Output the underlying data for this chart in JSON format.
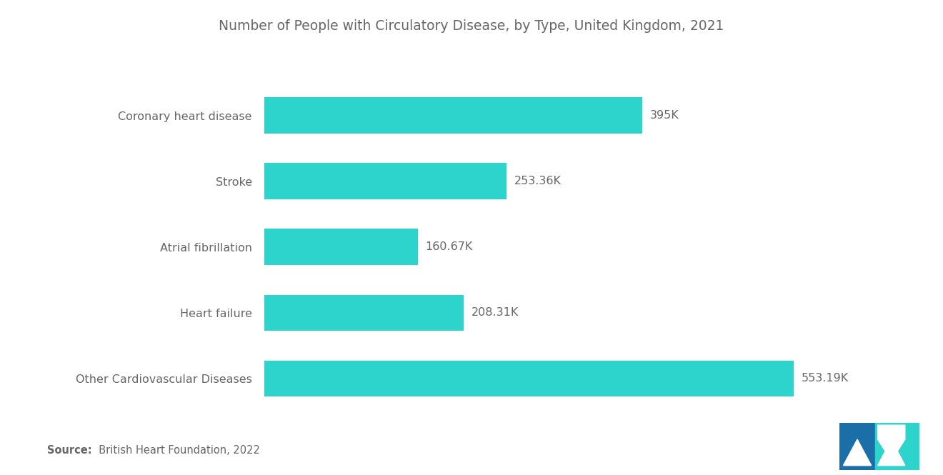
{
  "title": "Number of People with Circulatory Disease, by Type, United Kingdom, 2021",
  "categories": [
    "Coronary heart disease",
    "Stroke",
    "Atrial fibrillation",
    "Heart failure",
    "Other Cardiovascular Diseases"
  ],
  "values": [
    395,
    253.36,
    160.67,
    208.31,
    553.19
  ],
  "labels": [
    "395K",
    "253.36K",
    "160.67K",
    "208.31K",
    "553.19K"
  ],
  "bar_color": "#2DD4CC",
  "background_color": "#ffffff",
  "title_color": "#666666",
  "label_color": "#666666",
  "category_color": "#666666",
  "source_bold": "Source:",
  "source_normal": "  British Heart Foundation, 2022",
  "title_fontsize": 13.5,
  "label_fontsize": 11.5,
  "category_fontsize": 11.5,
  "source_fontsize": 10.5,
  "xlim": [
    0,
    640
  ]
}
